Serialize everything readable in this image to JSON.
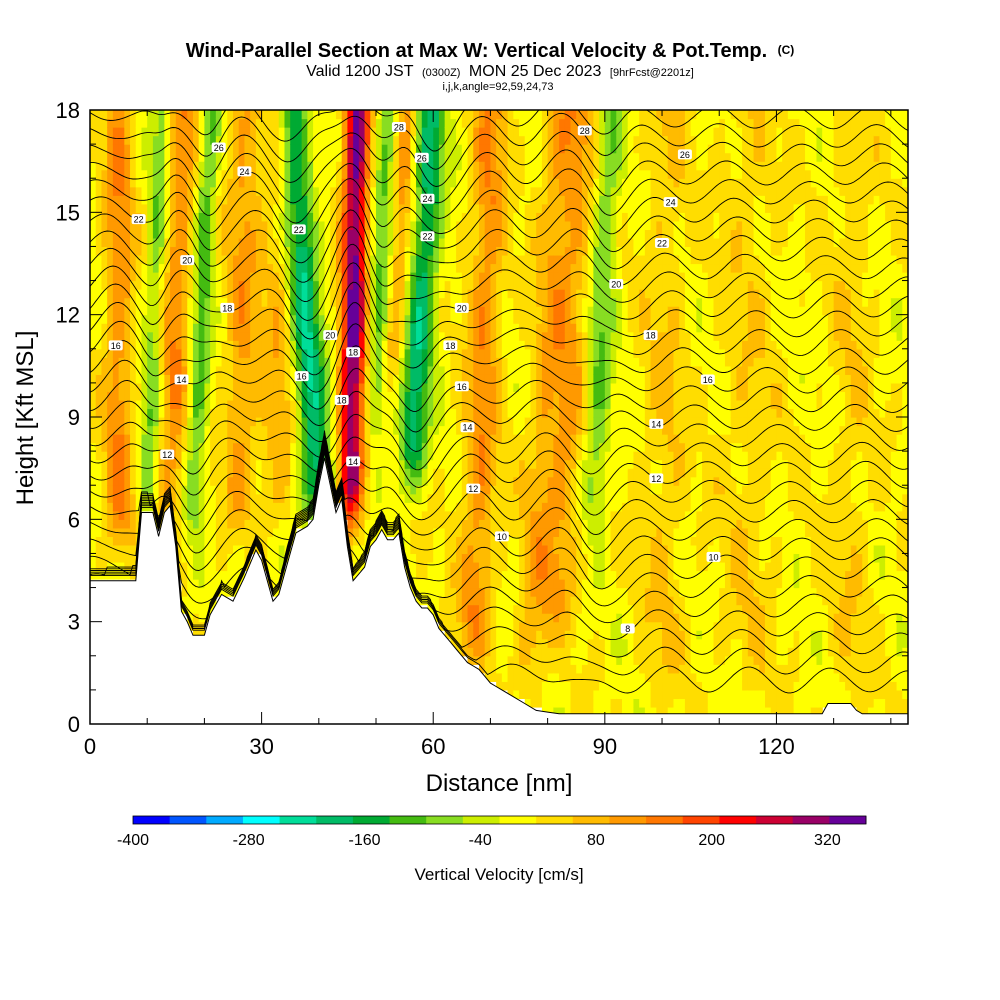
{
  "header": {
    "title": "Wind-Parallel Section at Max W: Vertical Velocity & Pot.Temp.",
    "title_mark": "(C)",
    "valid_prefix": "Valid 1200 JST",
    "valid_utc": "(0300Z)",
    "valid_date": "MON 25 Dec 2023",
    "forecast_tag": "[9hrFcst@2201z]",
    "grid_info": "i,j,k,angle=92,59,24,73"
  },
  "chart_data": {
    "type": "heatmap",
    "title": "Wind-Parallel Section at Max W: Vertical Velocity & Pot.Temp.",
    "xlabel": "Distance [nm]",
    "ylabel": "Height [Kft MSL]",
    "xlim": [
      0,
      143
    ],
    "ylim": [
      0,
      18
    ],
    "x_ticks": [
      0,
      30,
      60,
      90,
      120
    ],
    "x_tick_labels": [
      "0",
      "30",
      "60",
      "90",
      "120"
    ],
    "y_ticks": [
      0,
      3,
      6,
      9,
      12,
      15,
      18
    ],
    "y_tick_labels": [
      "0",
      "3",
      "6",
      "9",
      "12",
      "15",
      "18"
    ],
    "colorbar": {
      "label": "Vertical Velocity [cm/s]",
      "min": -400,
      "max": 360,
      "step": 40,
      "tick_values": [
        -400,
        -280,
        -160,
        -40,
        80,
        200,
        320
      ],
      "tick_labels": [
        "-400",
        "-280",
        "-160",
        "-40",
        "80",
        "200",
        "320"
      ],
      "colors": [
        "#0000ff",
        "#0055ff",
        "#00aaff",
        "#00ffff",
        "#00dd99",
        "#00bb66",
        "#00aa33",
        "#44bb11",
        "#88dd22",
        "#ccee00",
        "#ffff00",
        "#ffdd00",
        "#ffbb00",
        "#ff9900",
        "#ff7700",
        "#ff4400",
        "#ff0000",
        "#cc0033",
        "#990066",
        "#660099"
      ]
    },
    "terrain": [
      [
        0,
        4.2
      ],
      [
        8,
        4.2
      ],
      [
        9,
        6.2
      ],
      [
        11,
        6.2
      ],
      [
        12,
        5.5
      ],
      [
        13,
        6.2
      ],
      [
        14,
        6.4
      ],
      [
        15,
        5.2
      ],
      [
        16,
        3.3
      ],
      [
        17,
        3.0
      ],
      [
        18,
        2.6
      ],
      [
        20,
        2.6
      ],
      [
        21,
        3.2
      ],
      [
        23,
        3.8
      ],
      [
        25,
        3.6
      ],
      [
        27,
        4.3
      ],
      [
        29,
        5.1
      ],
      [
        30,
        4.8
      ],
      [
        32,
        3.6
      ],
      [
        33,
        3.8
      ],
      [
        35,
        5.0
      ],
      [
        36,
        5.6
      ],
      [
        38,
        5.8
      ],
      [
        39,
        6.0
      ],
      [
        40,
        7.0
      ],
      [
        41,
        7.8
      ],
      [
        42,
        7.0
      ],
      [
        43,
        6.2
      ],
      [
        44,
        6.6
      ],
      [
        45,
        5.2
      ],
      [
        46,
        4.2
      ],
      [
        47,
        4.4
      ],
      [
        48,
        4.6
      ],
      [
        49,
        5.2
      ],
      [
        50,
        5.4
      ],
      [
        51,
        5.7
      ],
      [
        52,
        5.4
      ],
      [
        53,
        5.4
      ],
      [
        54,
        5.6
      ],
      [
        55,
        4.6
      ],
      [
        56,
        4.0
      ],
      [
        57,
        3.6
      ],
      [
        58,
        3.4
      ],
      [
        59,
        3.4
      ],
      [
        60,
        3.2
      ],
      [
        61,
        2.8
      ],
      [
        62,
        2.6
      ],
      [
        63,
        2.4
      ],
      [
        64,
        2.2
      ],
      [
        65,
        2.0
      ],
      [
        66,
        1.8
      ],
      [
        67,
        1.7
      ],
      [
        68,
        1.6
      ],
      [
        69,
        1.4
      ],
      [
        70,
        1.2
      ],
      [
        71,
        1.1
      ],
      [
        72,
        1.0
      ],
      [
        74,
        0.8
      ],
      [
        76,
        0.6
      ],
      [
        78,
        0.4
      ],
      [
        80,
        0.35
      ],
      [
        82,
        0.3
      ],
      [
        84,
        0.3
      ],
      [
        86,
        0.3
      ],
      [
        88,
        0.3
      ],
      [
        90,
        0.3
      ],
      [
        95,
        0.3
      ],
      [
        100,
        0.3
      ],
      [
        110,
        0.3
      ],
      [
        120,
        0.3
      ],
      [
        128,
        0.3
      ],
      [
        129,
        0.6
      ],
      [
        133,
        0.6
      ],
      [
        134,
        0.4
      ],
      [
        135,
        0.3
      ],
      [
        143,
        0.3
      ]
    ],
    "w_features": [
      {
        "x": 5,
        "w": 2.5,
        "h0": 5,
        "lean": 0,
        "v": 120
      },
      {
        "x": 10,
        "w": 1.5,
        "h0": 6,
        "lean": 0.2,
        "v": -100
      },
      {
        "x": 14,
        "w": 2.5,
        "h0": 6,
        "lean": 0.2,
        "v": 120
      },
      {
        "x": 18,
        "w": 1.8,
        "h0": 6,
        "lean": 0.25,
        "v": -130
      },
      {
        "x": 26,
        "w": 3,
        "h0": 6,
        "lean": 0.1,
        "v": 100
      },
      {
        "x": 33,
        "w": 3,
        "h0": 6,
        "lean": 0.05,
        "v": 80
      },
      {
        "x": 40,
        "w": 2.8,
        "h0": 6,
        "lean": -0.4,
        "v": -230
      },
      {
        "x": 45.5,
        "w": 2.2,
        "h0": 6,
        "lean": 0.1,
        "v": 340
      },
      {
        "x": 50,
        "w": 2.0,
        "h0": 9,
        "lean": 0.3,
        "v": -180
      },
      {
        "x": 56,
        "w": 2.5,
        "h0": 7,
        "lean": 0.35,
        "v": -210
      },
      {
        "x": 52,
        "w": 2.5,
        "h0": 10,
        "lean": 0.35,
        "v": 140
      },
      {
        "x": 67,
        "w": 3,
        "h0": 2,
        "lean": 0.2,
        "v": 120
      },
      {
        "x": 77,
        "w": 3,
        "h0": 1,
        "lean": 0.3,
        "v": 80
      },
      {
        "x": 88,
        "w": 2.2,
        "h0": 6,
        "lean": 0.25,
        "v": -110
      },
      {
        "x": 82,
        "w": 3,
        "h0": 3,
        "lean": 0.25,
        "v": 90
      },
      {
        "x": 100,
        "w": 4,
        "h0": 1,
        "lean": 0.05,
        "v": 50
      },
      {
        "x": 115,
        "w": 5,
        "h0": 1,
        "lean": 0,
        "v": 40
      },
      {
        "x": 133,
        "w": 4,
        "h0": 1,
        "lean": 0,
        "v": 40
      }
    ],
    "theta_levels": [
      8,
      10,
      12,
      14,
      16,
      18,
      20,
      22,
      24,
      26,
      28
    ],
    "contour_labels": [
      {
        "x": 13.5,
        "y": 7.9,
        "text": "12"
      },
      {
        "x": 16,
        "y": 10.1,
        "text": "14"
      },
      {
        "x": 4.5,
        "y": 11.1,
        "text": "16"
      },
      {
        "x": 24,
        "y": 12.2,
        "text": "18"
      },
      {
        "x": 17,
        "y": 13.6,
        "text": "20"
      },
      {
        "x": 8.5,
        "y": 14.8,
        "text": "22"
      },
      {
        "x": 27,
        "y": 16.2,
        "text": "24"
      },
      {
        "x": 22.5,
        "y": 16.9,
        "text": "26"
      },
      {
        "x": 37,
        "y": 10.2,
        "text": "16"
      },
      {
        "x": 36.5,
        "y": 14.5,
        "text": "22"
      },
      {
        "x": 42,
        "y": 11.4,
        "text": "20"
      },
      {
        "x": 44,
        "y": 9.5,
        "text": "18"
      },
      {
        "x": 46,
        "y": 10.9,
        "text": "18"
      },
      {
        "x": 46,
        "y": 7.7,
        "text": "14"
      },
      {
        "x": 54,
        "y": 17.5,
        "text": "28"
      },
      {
        "x": 58,
        "y": 16.6,
        "text": "26"
      },
      {
        "x": 59,
        "y": 15.4,
        "text": "24"
      },
      {
        "x": 59,
        "y": 14.3,
        "text": "22"
      },
      {
        "x": 65,
        "y": 12.2,
        "text": "20"
      },
      {
        "x": 63,
        "y": 11.1,
        "text": "18"
      },
      {
        "x": 65,
        "y": 9.9,
        "text": "16"
      },
      {
        "x": 66,
        "y": 8.7,
        "text": "14"
      },
      {
        "x": 67,
        "y": 6.9,
        "text": "12"
      },
      {
        "x": 72,
        "y": 5.5,
        "text": "10"
      },
      {
        "x": 94,
        "y": 2.8,
        "text": "8"
      },
      {
        "x": 86.5,
        "y": 17.4,
        "text": "28"
      },
      {
        "x": 104,
        "y": 16.7,
        "text": "26"
      },
      {
        "x": 101.5,
        "y": 15.3,
        "text": "24"
      },
      {
        "x": 100,
        "y": 14.1,
        "text": "22"
      },
      {
        "x": 92,
        "y": 12.9,
        "text": "20"
      },
      {
        "x": 98,
        "y": 11.4,
        "text": "18"
      },
      {
        "x": 108,
        "y": 10.1,
        "text": "16"
      },
      {
        "x": 99,
        "y": 8.8,
        "text": "14"
      },
      {
        "x": 99,
        "y": 7.2,
        "text": "12"
      },
      {
        "x": 109,
        "y": 4.9,
        "text": "10"
      }
    ]
  }
}
